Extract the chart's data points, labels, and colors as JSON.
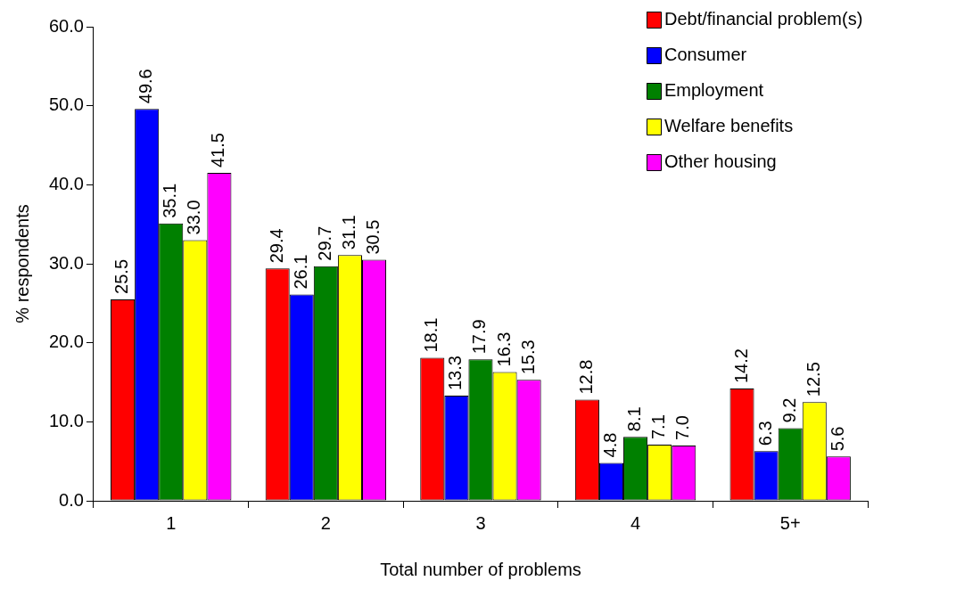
{
  "chart_data": {
    "type": "bar",
    "xlabel": "Total number of problems",
    "ylabel": "% respondents",
    "categories": [
      "1",
      "2",
      "3",
      "4",
      "5+"
    ],
    "series": [
      {
        "name": "Debt/financial problem(s)",
        "color": "#ff0000",
        "values": [
          25.5,
          29.4,
          18.1,
          12.8,
          14.2
        ],
        "value_labels": [
          "25.5",
          "29.4",
          "18.1",
          "12.8",
          "14.2"
        ]
      },
      {
        "name": "Consumer",
        "color": "#0000ff",
        "values": [
          49.6,
          26.1,
          13.3,
          4.8,
          6.3
        ],
        "value_labels": [
          "49.6",
          "26.1",
          "13.3",
          "4.8",
          "6.3"
        ]
      },
      {
        "name": "Employment",
        "color": "#008000",
        "values": [
          35.1,
          29.7,
          17.9,
          8.1,
          9.2
        ],
        "value_labels": [
          "35.1",
          "29.7",
          "17.9",
          "8.1",
          "9.2"
        ]
      },
      {
        "name": "Welfare benefits",
        "color": "#ffff00",
        "values": [
          33.0,
          31.1,
          16.3,
          7.1,
          12.5
        ],
        "value_labels": [
          "33.0",
          "31.1",
          "16.3",
          "7.1",
          "12.5"
        ]
      },
      {
        "name": "Other housing",
        "color": "#ff00ff",
        "values": [
          41.5,
          30.5,
          15.3,
          7.0,
          5.6
        ],
        "value_labels": [
          "41.5",
          "30.5",
          "15.3",
          "7.0",
          "5.6"
        ]
      }
    ],
    "ylim": [
      0,
      60
    ],
    "yticks": [
      {
        "value": 0,
        "label": "0.0"
      },
      {
        "value": 10,
        "label": "10.0"
      },
      {
        "value": 20,
        "label": "20.0"
      },
      {
        "value": 30,
        "label": "30.0"
      },
      {
        "value": 40,
        "label": "40.0"
      },
      {
        "value": 50,
        "label": "50.0"
      },
      {
        "value": 60,
        "label": "60.0"
      }
    ],
    "grid": false,
    "legend": "top right"
  }
}
